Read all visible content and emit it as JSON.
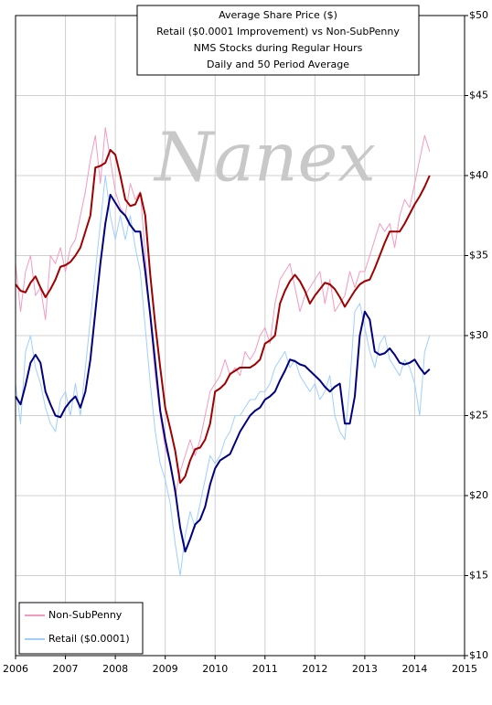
{
  "chart_data": {
    "type": "line",
    "title": [
      "Average Share Price ($)",
      "Retail ($0.0001 Improvement) vs Non-SubPenny",
      "NMS Stocks during Regular Hours",
      "Daily and 50 Period Average"
    ],
    "watermark": "Nanex",
    "x": [
      2006.0,
      2006.1,
      2006.2,
      2006.3,
      2006.4,
      2006.5,
      2006.6,
      2006.7,
      2006.8,
      2006.9,
      2007.0,
      2007.1,
      2007.2,
      2007.3,
      2007.4,
      2007.5,
      2007.6,
      2007.7,
      2007.8,
      2007.9,
      2008.0,
      2008.1,
      2008.2,
      2008.3,
      2008.4,
      2008.5,
      2008.6,
      2008.7,
      2008.8,
      2008.9,
      2009.0,
      2009.1,
      2009.2,
      2009.3,
      2009.4,
      2009.5,
      2009.6,
      2009.7,
      2009.8,
      2009.9,
      2010.0,
      2010.1,
      2010.2,
      2010.3,
      2010.4,
      2010.5,
      2010.6,
      2010.7,
      2010.8,
      2010.9,
      2011.0,
      2011.1,
      2011.2,
      2011.3,
      2011.4,
      2011.5,
      2011.6,
      2011.7,
      2011.8,
      2011.9,
      2012.0,
      2012.1,
      2012.2,
      2012.3,
      2012.4,
      2012.5,
      2012.6,
      2012.7,
      2012.8,
      2012.9,
      2013.0,
      2013.1,
      2013.2,
      2013.3,
      2013.4,
      2013.5,
      2013.6,
      2013.7,
      2013.8,
      2013.9,
      2014.0,
      2014.1,
      2014.2,
      2014.3
    ],
    "series": [
      {
        "name": "Non-SubPenny",
        "color": "#f49ac1",
        "width": 1,
        "values": [
          34.5,
          31.5,
          34,
          35,
          32.5,
          33,
          31,
          35,
          34.5,
          35.5,
          34,
          35.5,
          36,
          37.5,
          39,
          41,
          42.5,
          39.5,
          43,
          41,
          39,
          38,
          37.5,
          39.5,
          38.5,
          39,
          35,
          31,
          27.5,
          25,
          23,
          22,
          20,
          21.5,
          22.5,
          23.5,
          22.5,
          23.5,
          25,
          26.5,
          27,
          27.5,
          28.5,
          27.5,
          28,
          27.5,
          29,
          28.5,
          29,
          30,
          30.5,
          29.5,
          32,
          33.5,
          34,
          34.5,
          33,
          31.5,
          32.5,
          33,
          33.5,
          34,
          32,
          33.5,
          31.5,
          32,
          32.5,
          34,
          33,
          34,
          34,
          35,
          36,
          37,
          36.5,
          37,
          35.5,
          37.5,
          38.5,
          38,
          39.5,
          41,
          42.5,
          41.5
        ]
      },
      {
        "color": "#a00000",
        "width": 2,
        "values": [
          33.2,
          32.8,
          32.7,
          33.3,
          33.7,
          33.0,
          32.4,
          32.9,
          33.5,
          34.3,
          34.4,
          34.6,
          35.0,
          35.5,
          36.5,
          37.5,
          40.5,
          40.6,
          40.8,
          41.6,
          41.3,
          40.0,
          38.5,
          38.1,
          38.2,
          38.9,
          37.5,
          33.8,
          30.7,
          28.0,
          25.5,
          24.2,
          22.8,
          20.8,
          21.2,
          22.2,
          22.9,
          23.0,
          23.5,
          24.5,
          26.5,
          26.7,
          27.0,
          27.6,
          27.8,
          28.0,
          28.0,
          28.0,
          28.2,
          28.5,
          29.5,
          29.7,
          30.0,
          32.0,
          32.8,
          33.4,
          33.8,
          33.4,
          32.8,
          32.0,
          32.5,
          32.9,
          33.3,
          33.2,
          32.9,
          32.4,
          31.8,
          32.3,
          32.8,
          33.2,
          33.4,
          33.5,
          34.2,
          35.0,
          35.8,
          36.5,
          36.5,
          36.5,
          37.0,
          37.6,
          38.2,
          38.7,
          39.3,
          40.0
        ]
      },
      {
        "name": "Retail ($0.0001)",
        "color": "#9fcfff",
        "width": 1,
        "values": [
          27,
          24.5,
          29,
          30,
          28,
          27,
          25.5,
          24.5,
          24,
          26,
          26.5,
          25,
          27,
          25,
          28,
          31,
          34,
          37,
          40,
          37.5,
          36,
          37.5,
          36,
          37.5,
          35.5,
          34,
          30.5,
          27,
          24,
          22,
          21,
          19.5,
          17,
          15,
          17.5,
          19,
          18,
          19.5,
          21,
          22.5,
          22,
          22.5,
          23.5,
          24,
          25,
          25,
          25.5,
          26,
          26,
          26.5,
          26.5,
          27,
          28,
          28.5,
          29,
          28,
          28.5,
          27.5,
          27,
          26.5,
          27,
          26,
          26.5,
          27.5,
          25,
          24,
          23.5,
          27,
          31.5,
          32,
          30.5,
          29,
          28,
          29.5,
          30,
          28.5,
          28,
          27.5,
          28.5,
          28,
          27,
          25,
          29,
          30
        ]
      },
      {
        "color": "#000080",
        "width": 2,
        "values": [
          26.2,
          25.7,
          26.9,
          28.3,
          28.8,
          28.3,
          26.5,
          25.7,
          25.0,
          24.9,
          25.5,
          25.9,
          26.2,
          25.5,
          26.5,
          28.5,
          31.5,
          34.5,
          37.0,
          38.8,
          38.3,
          37.8,
          37.5,
          36.9,
          36.5,
          36.5,
          34.0,
          31.3,
          28.3,
          25.3,
          23.5,
          22.0,
          20.3,
          18.0,
          16.5,
          17.3,
          18.2,
          18.5,
          19.3,
          20.7,
          21.7,
          22.2,
          22.4,
          22.6,
          23.3,
          24.0,
          24.5,
          25.0,
          25.3,
          25.5,
          26.0,
          26.2,
          26.5,
          27.2,
          27.8,
          28.5,
          28.4,
          28.2,
          28.1,
          27.8,
          27.5,
          27.2,
          26.8,
          26.5,
          26.8,
          27.0,
          24.5,
          24.5,
          26.2,
          30.0,
          31.5,
          31.0,
          29.0,
          28.8,
          28.9,
          29.2,
          28.8,
          28.3,
          28.2,
          28.3,
          28.5,
          28.0,
          27.6,
          27.9
        ]
      }
    ],
    "xlim": [
      2006,
      2015
    ],
    "xticks": [
      2006,
      2007,
      2008,
      2009,
      2010,
      2011,
      2012,
      2013,
      2014,
      2015
    ],
    "ylim": [
      10,
      50
    ],
    "yticks": [
      {
        "value": 10,
        "label": "$10"
      },
      {
        "value": 15,
        "label": "$15"
      },
      {
        "value": 20,
        "label": "$20"
      },
      {
        "value": 25,
        "label": "$25"
      },
      {
        "value": 30,
        "label": "$30"
      },
      {
        "value": 35,
        "label": "$35"
      },
      {
        "value": 40,
        "label": "$40"
      },
      {
        "value": 45,
        "label": "$45"
      },
      {
        "value": 50,
        "label": "$50"
      }
    ],
    "grid": true,
    "legend": "lower-left"
  }
}
